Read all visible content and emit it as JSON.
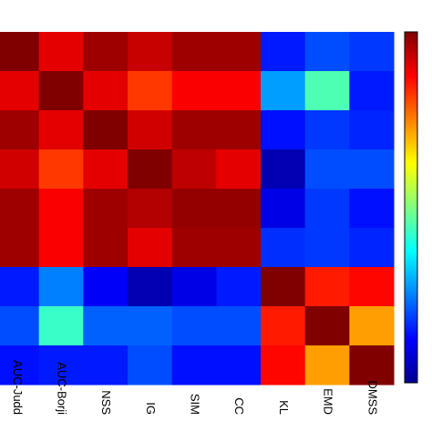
{
  "chart_data": {
    "type": "heatmap",
    "categories": [
      "AUC-Judd",
      "AUC-Borji",
      "NSS",
      "IG",
      "SIM",
      "CC",
      "KL",
      "EMD",
      "DMSS"
    ],
    "values": [
      [
        1,
        0.9,
        0.97,
        0.93,
        0.97,
        0.97,
        0.15,
        0.2,
        0.18
      ],
      [
        0.9,
        1,
        0.9,
        0.82,
        0.88,
        0.88,
        0.28,
        0.45,
        0.15
      ],
      [
        0.97,
        0.9,
        1,
        0.92,
        0.97,
        0.97,
        0.14,
        0.18,
        0.16
      ],
      [
        0.92,
        0.82,
        0.9,
        1,
        0.94,
        0.9,
        0.05,
        0.2,
        0.2
      ],
      [
        0.97,
        0.88,
        0.97,
        0.95,
        0.98,
        0.98,
        0.1,
        0.18,
        0.14
      ],
      [
        0.97,
        0.88,
        0.97,
        0.9,
        0.97,
        0.97,
        0.17,
        0.18,
        0.16
      ],
      [
        0.15,
        0.25,
        0.12,
        0.05,
        0.1,
        0.15,
        1,
        0.85,
        0.87
      ],
      [
        0.2,
        0.43,
        0.22,
        0.22,
        0.2,
        0.2,
        0.85,
        1,
        0.72
      ],
      [
        0.14,
        0.15,
        0.15,
        0.2,
        0.14,
        0.14,
        0.87,
        0.72,
        1
      ]
    ],
    "colormap": "jet",
    "clim": [
      0,
      1
    ]
  }
}
